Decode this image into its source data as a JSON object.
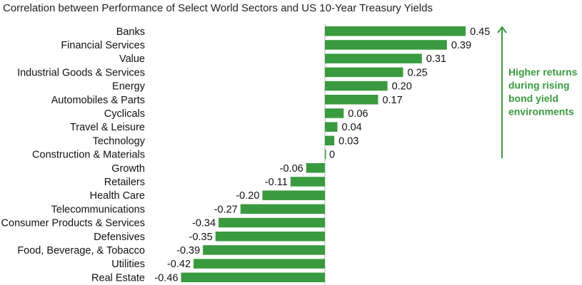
{
  "chart_data": {
    "type": "bar",
    "orientation": "horizontal",
    "title": "Correlation between Performance of Select World Sectors and US 10-Year Treasury Yields",
    "categories": [
      "Banks",
      "Financial Services",
      "Value",
      "Industrial Goods & Services",
      "Energy",
      "Automobiles & Parts",
      "Cyclicals",
      "Travel & Leisure",
      "Technology",
      "Construction & Materials",
      "Growth",
      "Retailers",
      "Health Care",
      "Telecommunications",
      "Consumer Products & Services",
      "Defensives",
      "Food, Beverage, & Tobacco",
      "Utilities",
      "Real Estate"
    ],
    "values": [
      0.45,
      0.39,
      0.31,
      0.25,
      0.2,
      0.17,
      0.06,
      0.04,
      0.03,
      0,
      -0.06,
      -0.11,
      -0.2,
      -0.27,
      -0.34,
      -0.35,
      -0.39,
      -0.42,
      -0.46
    ],
    "value_labels": [
      "0.45",
      "0.39",
      "0.31",
      "0.25",
      "0.20",
      "0.17",
      "0.06",
      "0.04",
      "0.03",
      "0",
      "-0.06",
      "-0.11",
      "-0.20",
      "-0.27",
      "-0.34",
      "-0.35",
      "-0.39",
      "-0.42",
      "-0.46"
    ],
    "xlim": [
      -0.46,
      0.45
    ],
    "grid": false,
    "legend": "none",
    "annotation": {
      "lines": [
        "Higher returns",
        "during rising",
        "bond yield",
        "environments"
      ],
      "arrow": "up"
    },
    "colors": {
      "bar": "#3a9a3f",
      "annotation": "#3a9a3f",
      "axis": "#bbbbbb",
      "text": "#111111"
    }
  }
}
